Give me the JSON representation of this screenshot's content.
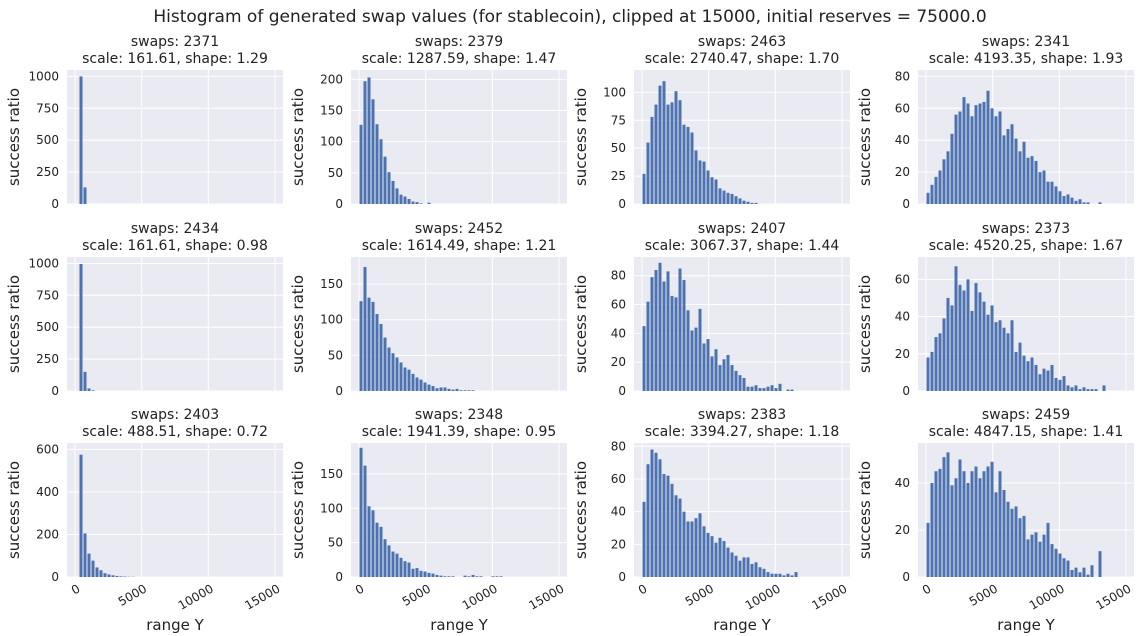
{
  "figure": {
    "suptitle": "Histogram of generated swap values (for stablecoin), clipped at 15000, initial reserves = 75000.0"
  },
  "colors": {
    "panel_bg": "#eaeaf2",
    "bar": "#4c72b0",
    "grid": "#ffffff",
    "text": "#222222"
  },
  "chart_data": [
    {
      "type": "bar",
      "title": "swaps: 2371\nscale: 161.61, shape: 1.29",
      "ylabel": "success ratio",
      "xlabel": "",
      "xlim": [
        -600,
        15600
      ],
      "ylim": [
        0,
        1050
      ],
      "yticks": [
        0,
        250,
        500,
        750,
        1000
      ],
      "xticks": [
        0,
        5000,
        10000,
        15000
      ],
      "show_xticklabels": false,
      "bin_start": 0,
      "bin_width": 300,
      "values": [
        0,
        1000,
        130
      ]
    },
    {
      "type": "bar",
      "title": "swaps: 2379\nscale: 1287.59, shape: 1.47",
      "ylabel": "success ratio",
      "xlabel": "",
      "xlim": [
        -600,
        15600
      ],
      "ylim": [
        0,
        215
      ],
      "yticks": [
        0,
        50,
        100,
        150,
        200
      ],
      "xticks": [
        0,
        5000,
        10000,
        15000
      ],
      "show_xticklabels": false,
      "bin_start": 0,
      "bin_width": 300,
      "values": [
        127,
        197,
        203,
        168,
        128,
        104,
        76,
        51,
        37,
        25,
        15,
        12,
        8,
        4,
        3,
        1,
        0,
        2
      ]
    },
    {
      "type": "bar",
      "title": "swaps: 2463\nscale: 2740.47, shape: 1.70",
      "ylabel": "success ratio",
      "xlabel": "",
      "xlim": [
        -600,
        15600
      ],
      "ylim": [
        0,
        120
      ],
      "yticks": [
        0,
        25,
        50,
        75,
        100
      ],
      "xticks": [
        0,
        5000,
        10000,
        15000
      ],
      "show_xticklabels": false,
      "bin_start": 0,
      "bin_width": 300,
      "values": [
        27,
        55,
        78,
        89,
        106,
        110,
        89,
        91,
        101,
        93,
        71,
        69,
        64,
        48,
        39,
        38,
        30,
        24,
        22,
        14,
        12,
        10,
        9,
        7,
        5,
        3,
        2,
        1,
        1
      ]
    },
    {
      "type": "bar",
      "title": "swaps: 2341\nscale: 4193.35, shape: 1.93",
      "ylabel": "success ratio",
      "xlabel": "",
      "xlim": [
        -600,
        15600
      ],
      "ylim": [
        0,
        84
      ],
      "yticks": [
        0,
        20,
        40,
        60,
        80
      ],
      "xticks": [
        0,
        5000,
        10000,
        15000
      ],
      "show_xticklabels": false,
      "bin_start": 0,
      "bin_width": 300,
      "values": [
        7,
        12,
        17,
        21,
        28,
        33,
        44,
        56,
        58,
        67,
        63,
        55,
        62,
        63,
        64,
        71,
        60,
        55,
        58,
        43,
        47,
        50,
        41,
        33,
        39,
        29,
        30,
        27,
        20,
        21,
        14,
        14,
        11,
        8,
        5,
        6,
        4,
        2,
        3,
        1,
        1,
        0,
        0,
        1
      ]
    },
    {
      "type": "bar",
      "title": "swaps: 2434\nscale: 161.61, shape: 0.98",
      "ylabel": "success ratio",
      "xlabel": "",
      "xlim": [
        -600,
        15600
      ],
      "ylim": [
        0,
        1050
      ],
      "yticks": [
        0,
        250,
        500,
        750,
        1000
      ],
      "xticks": [
        0,
        5000,
        10000,
        15000
      ],
      "show_xticklabels": false,
      "bin_start": 0,
      "bin_width": 300,
      "values": [
        0,
        995,
        150,
        20,
        5
      ]
    },
    {
      "type": "bar",
      "title": "swaps: 2452\nscale: 1614.49, shape: 1.21",
      "ylabel": "success ratio",
      "xlabel": "",
      "xlim": [
        -600,
        15600
      ],
      "ylim": [
        0,
        188
      ],
      "yticks": [
        0,
        50,
        100,
        150
      ],
      "xticks": [
        0,
        5000,
        10000,
        15000
      ],
      "show_xticklabels": false,
      "bin_start": 0,
      "bin_width": 300,
      "values": [
        126,
        174,
        131,
        125,
        108,
        94,
        75,
        61,
        53,
        47,
        40,
        33,
        30,
        24,
        19,
        16,
        12,
        9,
        7,
        4,
        5,
        5,
        3,
        2,
        3,
        1,
        1,
        1,
        1
      ]
    },
    {
      "type": "bar",
      "title": "swaps: 2407\nscale: 3067.37, shape: 1.44",
      "ylabel": "success ratio",
      "xlabel": "",
      "xlim": [
        -600,
        15600
      ],
      "ylim": [
        0,
        93
      ],
      "yticks": [
        0,
        20,
        40,
        60,
        80
      ],
      "xticks": [
        0,
        5000,
        10000,
        15000
      ],
      "show_xticklabels": false,
      "bin_start": 0,
      "bin_width": 300,
      "values": [
        45,
        62,
        79,
        84,
        89,
        76,
        83,
        66,
        65,
        85,
        77,
        56,
        42,
        44,
        57,
        33,
        36,
        24,
        29,
        18,
        22,
        25,
        18,
        14,
        11,
        9,
        3,
        3,
        4,
        2,
        2,
        3,
        4,
        2,
        5,
        0,
        1,
        1
      ]
    },
    {
      "type": "bar",
      "title": "swaps: 2373\nscale: 4520.25, shape: 1.67",
      "ylabel": "success ratio",
      "xlabel": "",
      "xlim": [
        -600,
        15600
      ],
      "ylim": [
        0,
        72
      ],
      "yticks": [
        0,
        20,
        40,
        60
      ],
      "xticks": [
        0,
        5000,
        10000,
        15000
      ],
      "show_xticklabels": false,
      "bin_start": 0,
      "bin_width": 300,
      "values": [
        18,
        21,
        29,
        31,
        39,
        50,
        46,
        67,
        57,
        54,
        60,
        43,
        58,
        53,
        48,
        41,
        46,
        37,
        38,
        34,
        31,
        38,
        21,
        26,
        19,
        16,
        18,
        14,
        9,
        12,
        11,
        14,
        7,
        6,
        8,
        3,
        2,
        3,
        1,
        2,
        1,
        1,
        1,
        0,
        3
      ]
    },
    {
      "type": "bar",
      "title": "swaps: 2403\nscale: 488.51, shape: 0.72",
      "ylabel": "success ratio",
      "xlabel": "range Y",
      "xlim": [
        -600,
        15600
      ],
      "ylim": [
        0,
        630
      ],
      "yticks": [
        0,
        200,
        400,
        600
      ],
      "xticks": [
        0,
        5000,
        10000,
        15000
      ],
      "xticklabels": [
        "0",
        "5000",
        "10000",
        "15000"
      ],
      "show_xticklabels": true,
      "bin_start": 0,
      "bin_width": 300,
      "values": [
        0,
        575,
        205,
        110,
        77,
        45,
        32,
        18,
        12,
        8,
        5,
        3,
        2,
        1,
        1
      ]
    },
    {
      "type": "bar",
      "title": "swaps: 2348\nscale: 1941.39, shape: 0.95",
      "ylabel": "success ratio",
      "xlabel": "range Y",
      "xlim": [
        -600,
        15600
      ],
      "ylim": [
        0,
        195
      ],
      "yticks": [
        0,
        50,
        100,
        150
      ],
      "xticks": [
        0,
        5000,
        10000,
        15000
      ],
      "xticklabels": [
        "0",
        "5000",
        "10000",
        "15000"
      ],
      "show_xticklabels": true,
      "bin_start": 0,
      "bin_width": 300,
      "values": [
        188,
        162,
        103,
        97,
        79,
        73,
        55,
        46,
        37,
        34,
        28,
        23,
        21,
        12,
        13,
        9,
        8,
        6,
        5,
        3,
        2,
        1,
        1,
        1,
        0,
        0,
        2,
        1,
        3,
        1,
        1,
        0,
        0,
        1,
        1,
        1
      ]
    },
    {
      "type": "bar",
      "title": "swaps: 2383\nscale: 3394.27, shape: 1.18",
      "ylabel": "success ratio",
      "xlabel": "range Y",
      "xlim": [
        -600,
        15600
      ],
      "ylim": [
        0,
        82
      ],
      "yticks": [
        0,
        20,
        40,
        60,
        80
      ],
      "xticks": [
        0,
        5000,
        10000,
        15000
      ],
      "xticklabels": [
        "0",
        "5000",
        "10000",
        "15000"
      ],
      "show_xticklabels": true,
      "bin_start": 0,
      "bin_width": 300,
      "values": [
        46,
        69,
        78,
        76,
        72,
        63,
        62,
        57,
        50,
        48,
        40,
        34,
        34,
        36,
        39,
        31,
        27,
        25,
        21,
        24,
        22,
        18,
        15,
        13,
        10,
        12,
        12,
        8,
        9,
        6,
        5,
        3,
        2,
        2,
        2,
        1,
        2,
        1,
        3
      ]
    },
    {
      "type": "bar",
      "title": "swaps: 2459\nscale: 4847.15, shape: 1.41",
      "ylabel": "success ratio",
      "xlabel": "range Y",
      "xlim": [
        -600,
        15600
      ],
      "ylim": [
        0,
        57
      ],
      "yticks": [
        0,
        20,
        40
      ],
      "xticks": [
        0,
        5000,
        10000,
        15000
      ],
      "xticklabels": [
        "0",
        "5000",
        "10000",
        "15000"
      ],
      "show_xticklabels": true,
      "bin_start": 0,
      "bin_width": 300,
      "values": [
        23,
        40,
        45,
        46,
        51,
        53,
        39,
        42,
        50,
        45,
        40,
        45,
        47,
        42,
        45,
        47,
        49,
        36,
        45,
        37,
        32,
        29,
        30,
        25,
        26,
        16,
        18,
        19,
        15,
        18,
        23,
        14,
        12,
        10,
        8,
        7,
        3,
        4,
        2,
        4,
        1,
        5,
        0,
        11
      ]
    }
  ]
}
